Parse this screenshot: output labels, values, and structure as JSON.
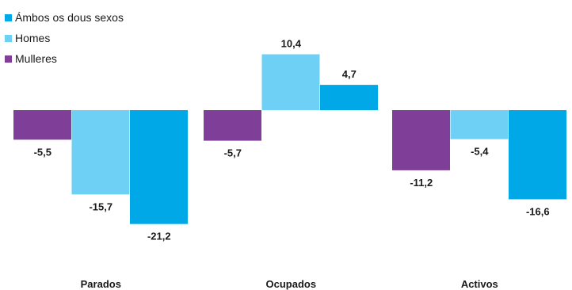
{
  "colors": {
    "ambos": "#00a8e8",
    "homes": "#6fd0f5",
    "mulleres": "#7f3f98"
  },
  "legend": [
    {
      "label": "Ámbos os dous sexos",
      "color_key": "ambos"
    },
    {
      "label": "Homes",
      "color_key": "homes"
    },
    {
      "label": "Mulleres",
      "color_key": "mulleres"
    }
  ],
  "chart_data": {
    "type": "bar",
    "categories": [
      "Parados",
      "Ocupados",
      "Activos"
    ],
    "series": [
      {
        "name": "Mulleres",
        "color_key": "mulleres",
        "values": [
          -5.5,
          -5.7,
          -11.2
        ],
        "labels": [
          "-5,5",
          "-5,7",
          "-11,2"
        ]
      },
      {
        "name": "Homes",
        "color_key": "homes",
        "values": [
          -15.7,
          10.4,
          -5.4
        ],
        "labels": [
          "-15,7",
          "10,4",
          "-5,4"
        ]
      },
      {
        "name": "Ámbos os dous sexos",
        "color_key": "ambos",
        "values": [
          -21.2,
          4.7,
          -16.6
        ],
        "labels": [
          "-21,2",
          "4,7",
          "-16,6"
        ]
      }
    ],
    "title": "",
    "xlabel": "",
    "ylabel": "",
    "ylim": [
      -21.2,
      10.4
    ],
    "grid": false,
    "legend_position": "top-left"
  }
}
